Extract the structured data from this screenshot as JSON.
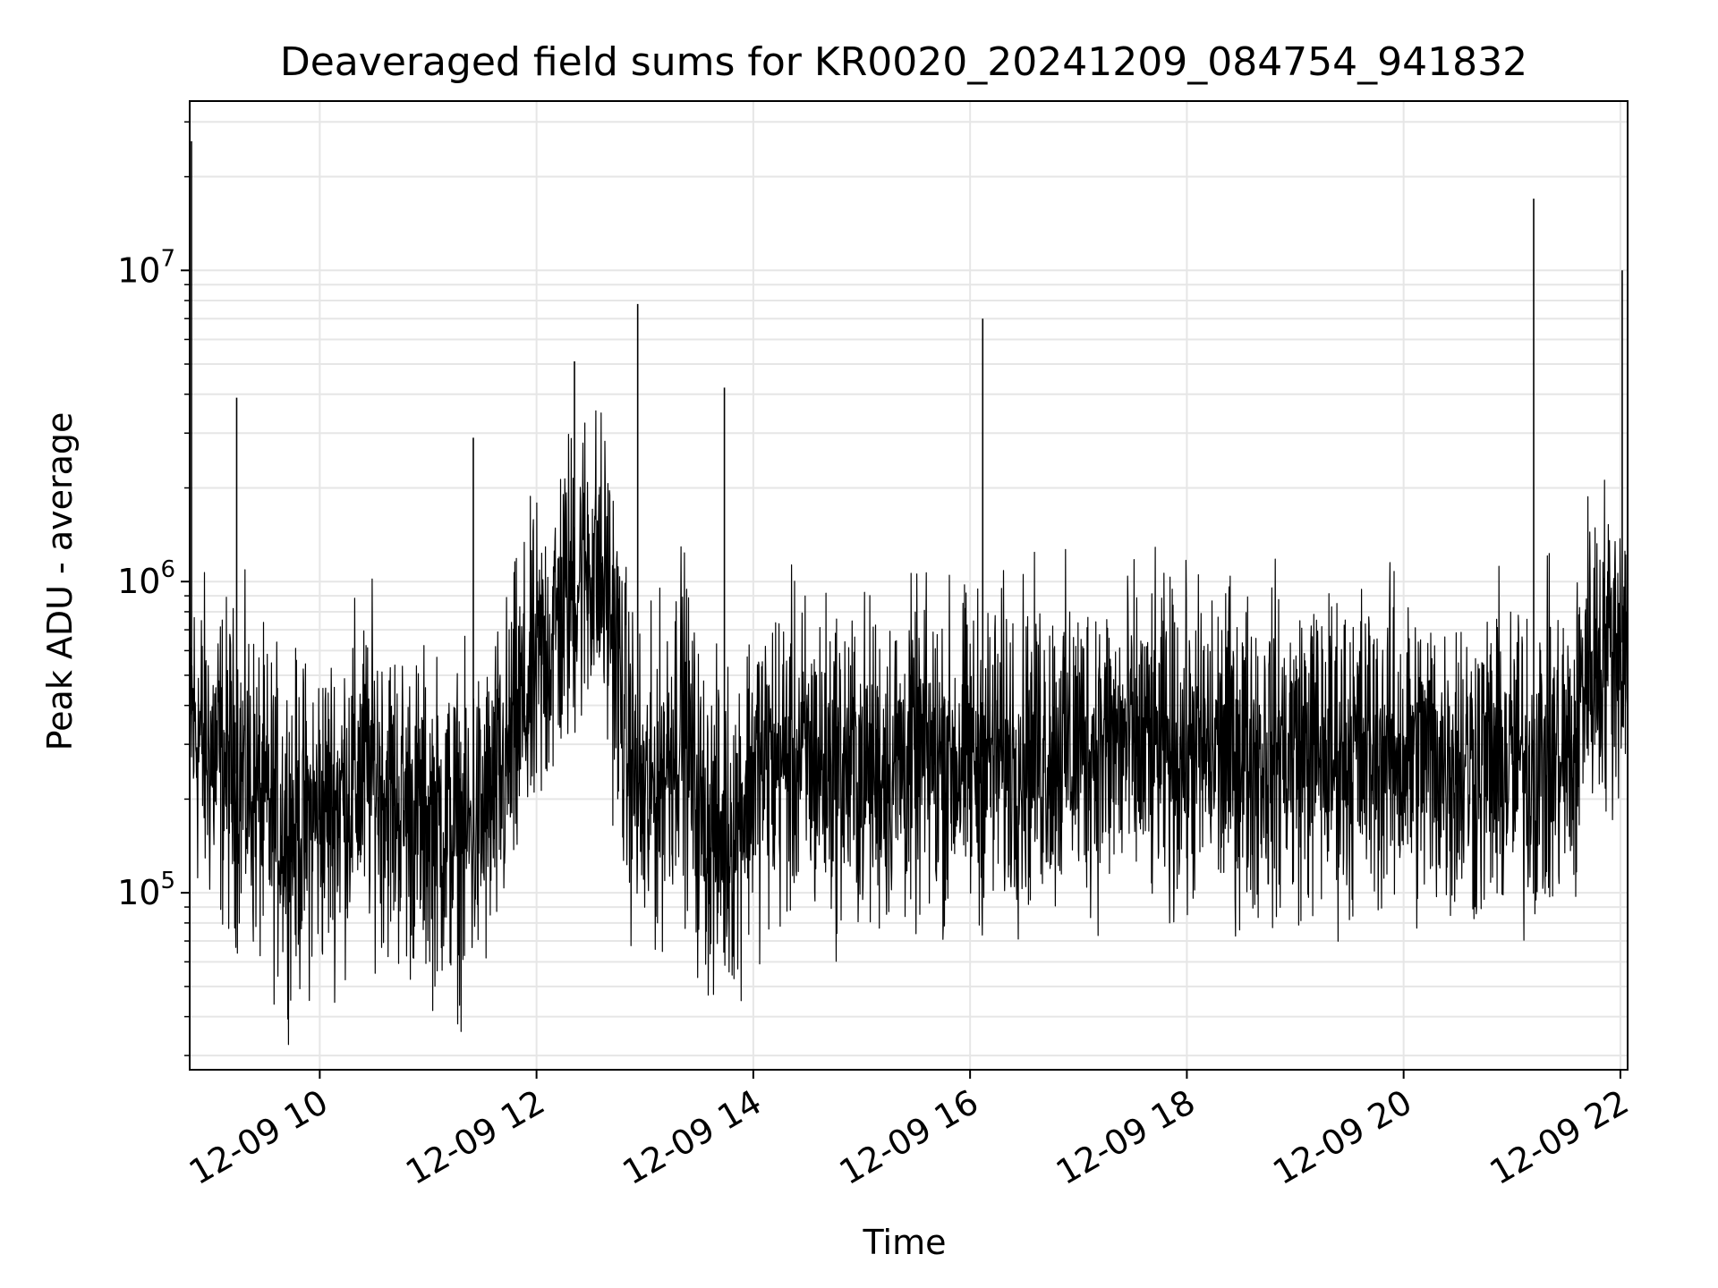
{
  "chart_data": {
    "type": "line",
    "title": "Deaveraged field sums for KR0020_20241209_084754_941832",
    "xlabel": "Time",
    "ylabel": "Peak ADU - average",
    "yscale": "log",
    "xlim": [
      "2024-12-09 08:48",
      "2024-12-09 22:04"
    ],
    "ylim": [
      27000,
      35000000
    ],
    "grid": true,
    "x_ticks": [
      {
        "value": "2024-12-09 10:00",
        "label": "12-09 10"
      },
      {
        "value": "2024-12-09 12:00",
        "label": "12-09 12"
      },
      {
        "value": "2024-12-09 14:00",
        "label": "12-09 14"
      },
      {
        "value": "2024-12-09 16:00",
        "label": "12-09 16"
      },
      {
        "value": "2024-12-09 18:00",
        "label": "12-09 18"
      },
      {
        "value": "2024-12-09 20:00",
        "label": "12-09 20"
      },
      {
        "value": "2024-12-09 22:00",
        "label": "12-09 22"
      }
    ],
    "y_ticks": [
      {
        "value": 100000,
        "base": "10",
        "exp": "5"
      },
      {
        "value": 1000000,
        "base": "10",
        "exp": "6"
      },
      {
        "value": 10000000,
        "base": "10",
        "exp": "7"
      }
    ],
    "line_color": "#000000",
    "series": [
      {
        "x": [
          "2024-12-09 08:48",
          "2024-12-09 08:50",
          "2024-12-09 08:55",
          "2024-12-09 09:00",
          "2024-12-09 09:10",
          "2024-12-09 09:20",
          "2024-12-09 09:30",
          "2024-12-09 09:40",
          "2024-12-09 09:50",
          "2024-12-09 10:00",
          "2024-12-09 10:10",
          "2024-12-09 10:20",
          "2024-12-09 10:30",
          "2024-12-09 10:40",
          "2024-12-09 10:50",
          "2024-12-09 11:00",
          "2024-12-09 11:10",
          "2024-12-09 11:20",
          "2024-12-09 11:30",
          "2024-12-09 11:40",
          "2024-12-09 11:50",
          "2024-12-09 12:00",
          "2024-12-09 12:10",
          "2024-12-09 12:20",
          "2024-12-09 12:30",
          "2024-12-09 12:40",
          "2024-12-09 12:50",
          "2024-12-09 13:00",
          "2024-12-09 13:10",
          "2024-12-09 13:20",
          "2024-12-09 13:30",
          "2024-12-09 13:40",
          "2024-12-09 13:50",
          "2024-12-09 14:00",
          "2024-12-09 14:20",
          "2024-12-09 14:40",
          "2024-12-09 15:00",
          "2024-12-09 15:20",
          "2024-12-09 15:40",
          "2024-12-09 16:00",
          "2024-12-09 16:20",
          "2024-12-09 16:40",
          "2024-12-09 17:00",
          "2024-12-09 17:20",
          "2024-12-09 17:40",
          "2024-12-09 18:00",
          "2024-12-09 18:20",
          "2024-12-09 18:40",
          "2024-12-09 19:00",
          "2024-12-09 19:20",
          "2024-12-09 19:40",
          "2024-12-09 20:00",
          "2024-12-09 20:20",
          "2024-12-09 20:40",
          "2024-12-09 21:00",
          "2024-12-09 21:20",
          "2024-12-09 21:35",
          "2024-12-09 21:40",
          "2024-12-09 21:50",
          "2024-12-09 22:00",
          "2024-12-09 22:04"
        ],
        "y": [
          400000,
          350000,
          300000,
          280000,
          250000,
          230000,
          180000,
          170000,
          160000,
          180000,
          200000,
          230000,
          250000,
          200000,
          180000,
          170000,
          160000,
          150000,
          170000,
          220000,
          350000,
          500000,
          700000,
          1000000,
          1200000,
          900000,
          300000,
          180000,
          250000,
          400000,
          180000,
          150000,
          170000,
          250000,
          270000,
          260000,
          250000,
          260000,
          270000,
          270000,
          280000,
          290000,
          300000,
          300000,
          290000,
          280000,
          290000,
          280000,
          290000,
          280000,
          290000,
          280000,
          270000,
          260000,
          260000,
          270000,
          270000,
          550000,
          600000,
          650000,
          600000
        ],
        "spikes": [
          {
            "x": "2024-12-09 08:49",
            "y": 26000000
          },
          {
            "x": "2024-12-09 09:14",
            "y": 3900000
          },
          {
            "x": "2024-12-09 11:25",
            "y": 2900000
          },
          {
            "x": "2024-12-09 12:21",
            "y": 5100000
          },
          {
            "x": "2024-12-09 12:56",
            "y": 7800000
          },
          {
            "x": "2024-12-09 13:44",
            "y": 4200000
          },
          {
            "x": "2024-12-09 16:07",
            "y": 7000000
          },
          {
            "x": "2024-12-09 21:12",
            "y": 17000000
          },
          {
            "x": "2024-12-09 22:01",
            "y": 10000000
          }
        ]
      }
    ]
  }
}
